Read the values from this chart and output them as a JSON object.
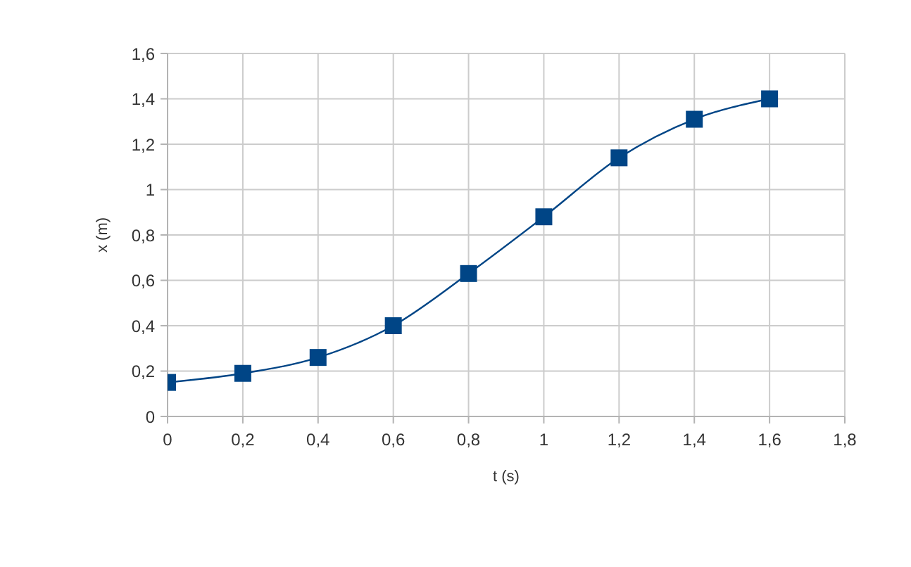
{
  "chart_data": {
    "type": "line",
    "xlabel": "t (s)",
    "ylabel": "x (m)",
    "x": [
      0,
      0.2,
      0.4,
      0.6,
      0.8,
      1,
      1.2,
      1.4,
      1.6
    ],
    "values": [
      0.15,
      0.19,
      0.26,
      0.4,
      0.63,
      0.88,
      1.14,
      1.31,
      1.4
    ],
    "color": "#004586",
    "xlim": [
      0,
      1.8
    ],
    "xticks": [
      0,
      {
        "value": 0.2,
        "label": "0,2"
      },
      {
        "value": 0.4,
        "label": "0,4"
      },
      {
        "value": 0.6,
        "label": "0,6"
      },
      {
        "value": 0.8,
        "label": "0,8"
      },
      1,
      {
        "value": 1.2,
        "label": "1,2"
      },
      {
        "value": 1.4,
        "label": "1,4"
      },
      {
        "value": 1.6,
        "label": "1,6"
      },
      {
        "value": 1.8,
        "label": "1,8"
      }
    ],
    "ylim": [
      0,
      1.6
    ],
    "yticks": [
      0,
      {
        "value": 0.2,
        "label": "0,2"
      },
      {
        "value": 0.4,
        "label": "0,4"
      },
      {
        "value": 0.6,
        "label": "0,6"
      },
      {
        "value": 0.8,
        "label": "0,8"
      },
      1,
      {
        "value": 1.2,
        "label": "1,2"
      },
      {
        "value": 1.4,
        "label": "1,4"
      },
      {
        "value": 1.6,
        "label": "1,6"
      }
    ],
    "grid": true,
    "marker": "square",
    "line_style": "solid"
  }
}
